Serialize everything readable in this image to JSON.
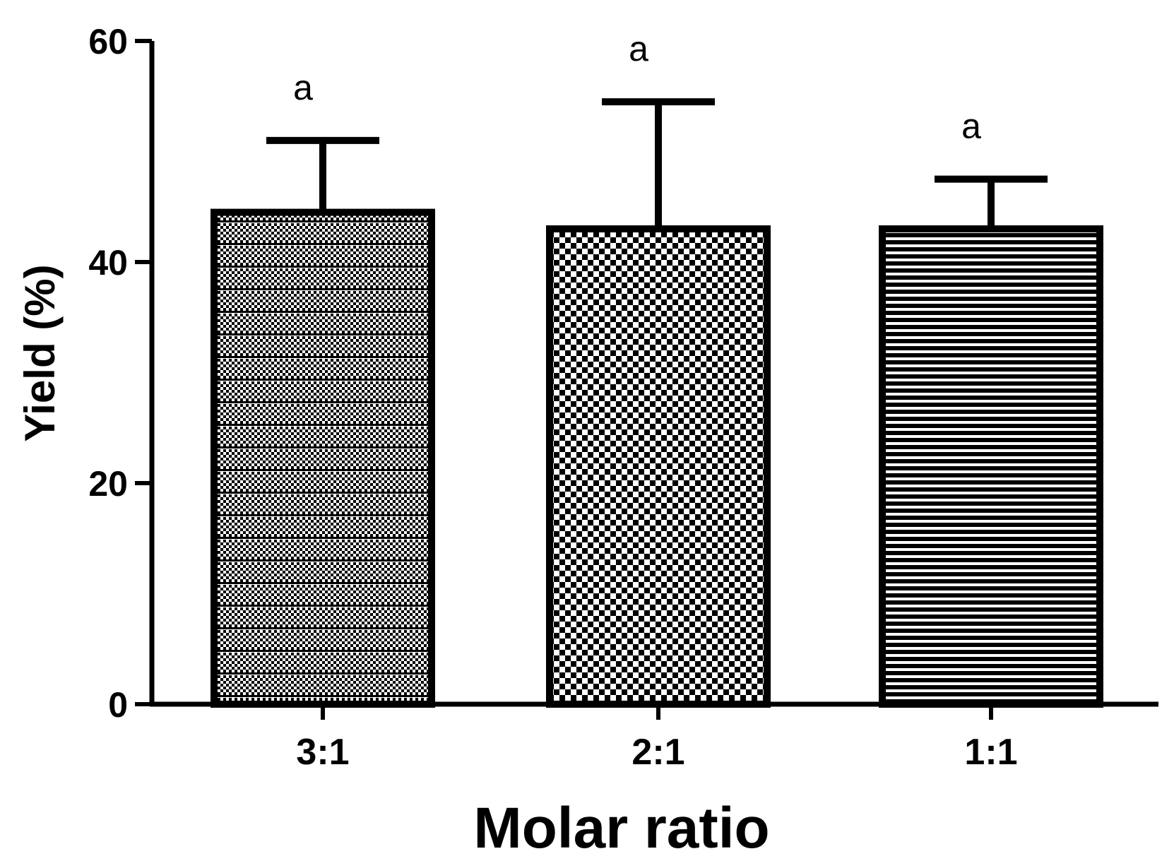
{
  "chart_data": {
    "type": "bar",
    "xlabel": "Molar ratio",
    "ylabel": "Yield (%)",
    "ylim": [
      0,
      60
    ],
    "yticks": [
      0,
      20,
      40,
      60
    ],
    "categories": [
      "3:1",
      "2:1",
      "1:1"
    ],
    "values": [
      44.5,
      43.0,
      43.0
    ],
    "error_upper": [
      6.5,
      11.5,
      4.5
    ],
    "significance_labels": [
      "a",
      "a",
      "a"
    ],
    "patterns": [
      "fine-checker-with-lines",
      "coarse-checker",
      "horizontal-lines"
    ],
    "colors": {
      "bar_fill": "#ffffff",
      "pattern": "#000000",
      "axis": "#000000"
    },
    "grid": false,
    "legend": "none"
  }
}
